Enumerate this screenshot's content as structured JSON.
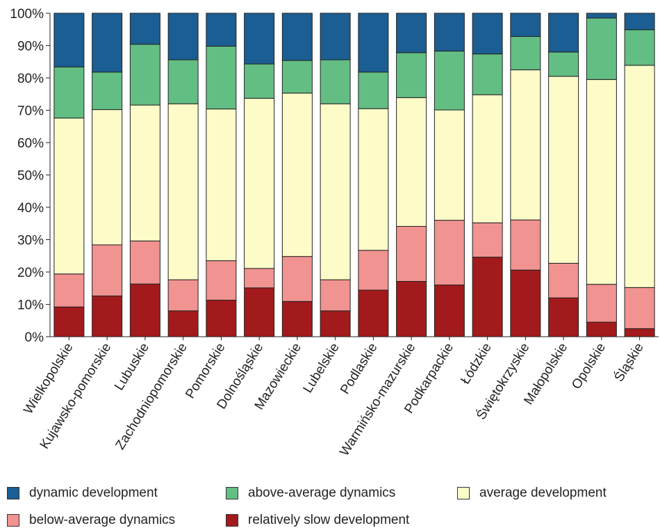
{
  "chart_data": {
    "type": "bar",
    "stacked": true,
    "percent": true,
    "title": "",
    "xlabel": "",
    "ylabel": "",
    "ylim": [
      0,
      100
    ],
    "yticks": [
      "0%",
      "10%",
      "20%",
      "30%",
      "40%",
      "50%",
      "60%",
      "70%",
      "80%",
      "90%",
      "100%"
    ],
    "grid": false,
    "legend_position": "bottom",
    "categories": [
      "Wielkopolskie",
      "Kujawsko-pomorskie",
      "Lubuskie",
      "Zachodniopomorskie",
      "Pomorskie",
      "Dolnośląskie",
      "Mazowieckie",
      "Lubelskie",
      "Podlaskie",
      "Warmińsko-mazurskie",
      "Podkarpackie",
      "Łódzkie",
      "Świętokrzyskie",
      "Małopolskie",
      "Opolskie",
      "Śląskie"
    ],
    "series": [
      {
        "name": "relatively slow development",
        "color": "#a31a1c",
        "values": [
          9.2,
          12.6,
          16.3,
          8.0,
          11.3,
          15.1,
          10.9,
          8.0,
          14.4,
          17.1,
          16.0,
          24.6,
          20.6,
          12.0,
          4.5,
          2.5
        ]
      },
      {
        "name": "below-average dynamics",
        "color": "#f19391",
        "values": [
          10.2,
          15.8,
          13.3,
          9.6,
          12.2,
          6.0,
          13.9,
          9.6,
          12.3,
          17.0,
          20.0,
          10.6,
          15.5,
          10.7,
          11.7,
          12.7
        ]
      },
      {
        "name": "average development",
        "color": "#fdfbc8",
        "values": [
          48.2,
          41.8,
          42.0,
          54.4,
          46.9,
          52.6,
          50.5,
          54.4,
          43.8,
          39.8,
          34.1,
          39.6,
          46.4,
          57.8,
          63.3,
          68.7
        ]
      },
      {
        "name": "above-average dynamics",
        "color": "#63be84",
        "values": [
          15.8,
          11.6,
          18.8,
          13.6,
          19.4,
          10.6,
          10.1,
          13.6,
          11.3,
          13.9,
          18.2,
          12.6,
          10.3,
          7.5,
          19.0,
          11.0
        ]
      },
      {
        "name": "dynamic development",
        "color": "#1b5e93",
        "values": [
          16.6,
          18.2,
          9.6,
          14.4,
          10.2,
          15.7,
          14.6,
          14.4,
          18.2,
          12.2,
          11.7,
          12.6,
          7.2,
          12.0,
          1.5,
          5.1
        ]
      }
    ]
  },
  "legend": [
    {
      "label": "dynamic development",
      "color": "#1b5e93"
    },
    {
      "label": "above-average dynamics",
      "color": "#63be84"
    },
    {
      "label": "average development",
      "color": "#fdfbc8"
    },
    {
      "label": "below-average dynamics",
      "color": "#f19391"
    },
    {
      "label": "relatively slow development",
      "color": "#a31a1c"
    }
  ]
}
